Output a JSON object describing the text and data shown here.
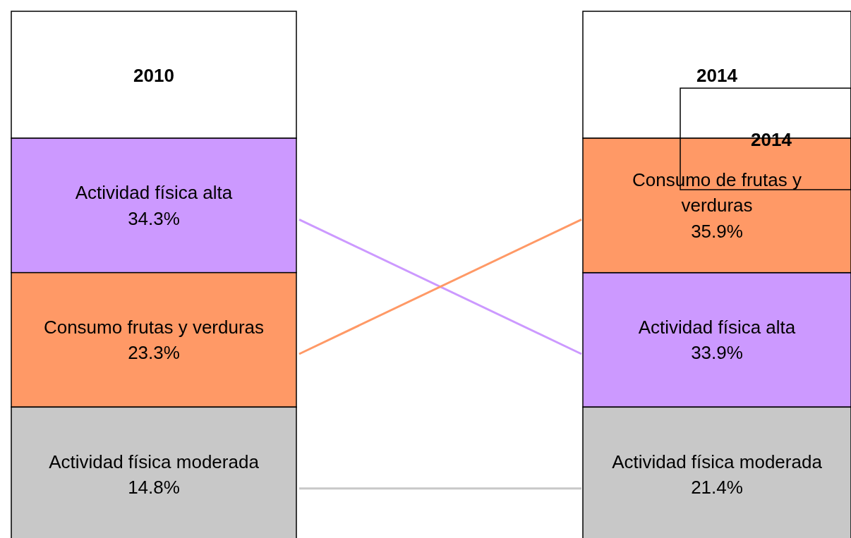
{
  "chart_data": {
    "type": "other",
    "categories": [
      "2010",
      "2014"
    ],
    "series": [
      {
        "color": "#cc99ff",
        "values": [
          34.3,
          33.9
        ],
        "value_labels": [
          "Actividad física alta 34.3%",
          "Actividad física alta 33.9%"
        ]
      },
      {
        "color": "#ff9966",
        "values": [
          23.3,
          35.9
        ],
        "value_labels": [
          "Consumo frutas y verduras 23.3%",
          "Consumo de frutas y verduras 35.9%"
        ]
      },
      {
        "color": "#c8c8c8",
        "values": [
          14.8,
          21.4
        ],
        "value_labels": [
          "Actividad física moderada 14.8%",
          "Actividad física moderada 21.4%"
        ]
      }
    ],
    "annotations": [
      "2014"
    ]
  }
}
